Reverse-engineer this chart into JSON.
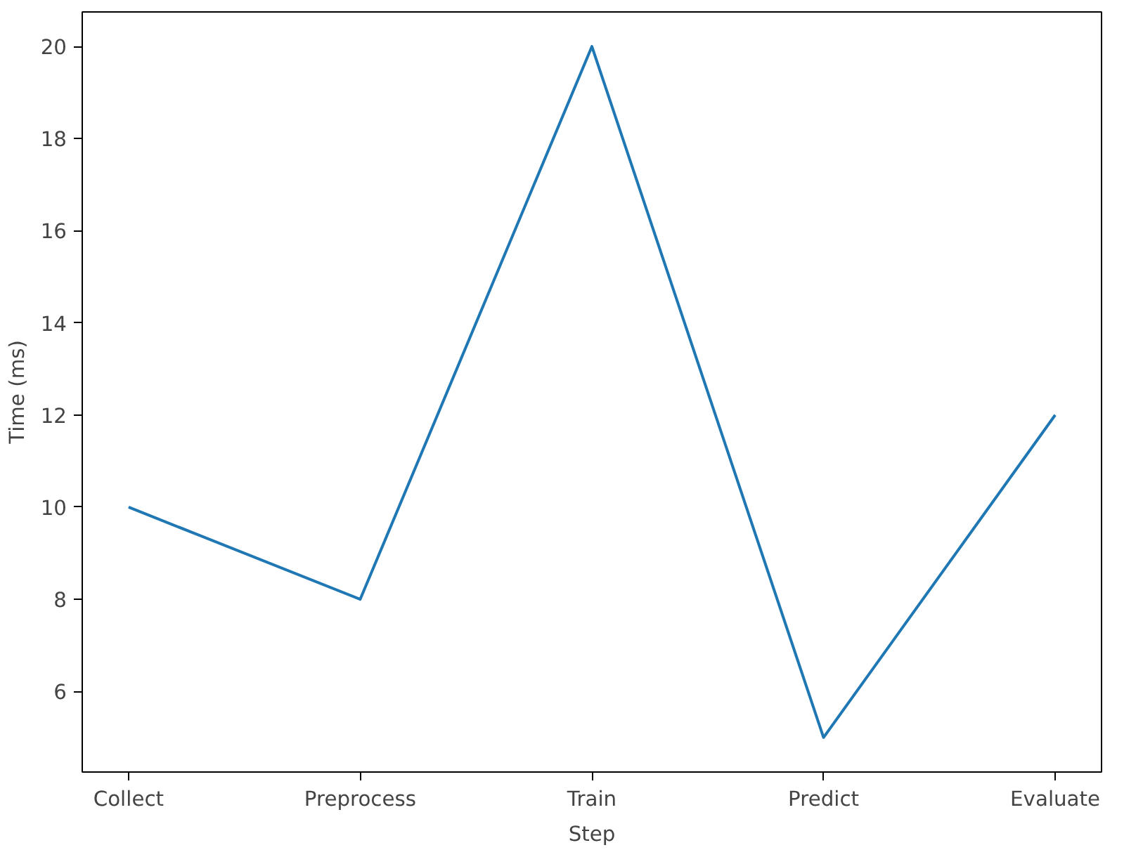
{
  "chart_data": {
    "type": "line",
    "xlabel": "Step",
    "ylabel": "Time (ms)",
    "categories": [
      "Collect",
      "Preprocess",
      "Train",
      "Predict",
      "Evaluate"
    ],
    "series": [
      {
        "color": "#1f77b4",
        "values": [
          10,
          8,
          20,
          5,
          12
        ]
      }
    ],
    "ylim": [
      4.25,
      20.75
    ],
    "yticks": [
      6,
      8,
      10,
      12,
      14,
      16,
      18,
      20
    ],
    "grid": false
  }
}
